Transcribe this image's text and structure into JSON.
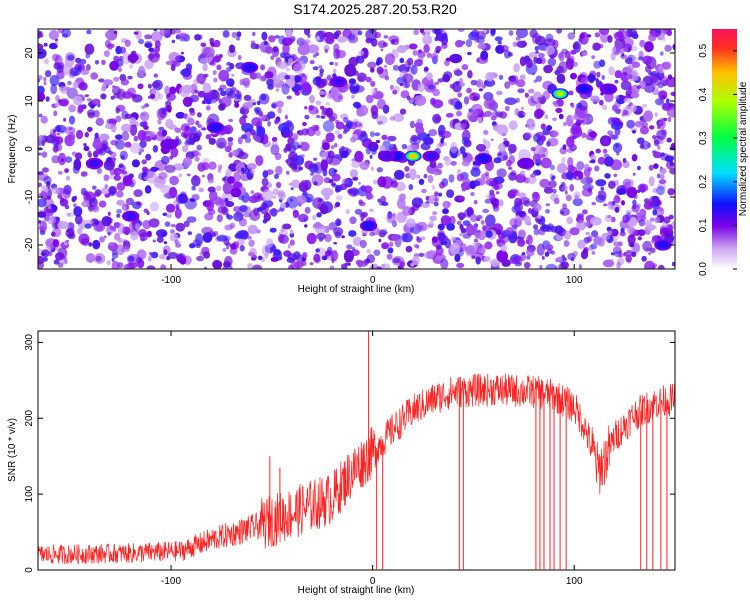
{
  "figure_title": "S174.2025.287.20.53.R20",
  "chart_data": [
    {
      "type": "heatmap",
      "xlabel": "Height of straight line (km)",
      "ylabel": "Frequency (Hz)",
      "xlim": [
        -166,
        150
      ],
      "ylim": [
        -25,
        25
      ],
      "xticks": [
        -100,
        0,
        100
      ],
      "yticks": [
        -20,
        -10,
        0,
        10,
        20
      ],
      "colorbar": {
        "label": "Normalized spectral amplitude",
        "range": [
          0,
          0.55
        ],
        "ticks": [
          0,
          0.1,
          0.2,
          0.3,
          0.4,
          0.5
        ],
        "tick_labels": [
          "0.0",
          "0.1",
          "0.2",
          "0.3",
          "0.4",
          "0.5"
        ]
      },
      "hotspots": [
        {
          "x": 20,
          "y": -1.5,
          "value": 0.45
        },
        {
          "x": 93,
          "y": 11.5,
          "value": 0.38
        },
        {
          "x": 12,
          "y": -1.5,
          "value": 0.15
        },
        {
          "x": 7,
          "y": -1.5,
          "value": 0.12
        },
        {
          "x": 29,
          "y": -1.5,
          "value": 0.13
        },
        {
          "x": 55,
          "y": -2,
          "value": 0.14
        },
        {
          "x": 105,
          "y": 12.5,
          "value": 0.15
        },
        {
          "x": 117,
          "y": 12.5,
          "value": 0.12
        },
        {
          "x": -61,
          "y": 17,
          "value": 0.14
        },
        {
          "x": -17,
          "y": 14,
          "value": 0.13
        },
        {
          "x": -78,
          "y": 4.5,
          "value": 0.14
        },
        {
          "x": -138,
          "y": -3,
          "value": 0.13
        },
        {
          "x": -120,
          "y": -14,
          "value": 0.13
        },
        {
          "x": -2,
          "y": -16,
          "value": 0.14
        },
        {
          "x": 144,
          "y": -20,
          "value": 0.14
        },
        {
          "x": -101,
          "y": 1,
          "value": 0.11
        },
        {
          "x": 76,
          "y": -3,
          "value": 0.11
        }
      ]
    },
    {
      "type": "line",
      "xlabel": "Height of straight line (km)",
      "ylabel": "SNR (10 * v/v)",
      "xlim": [
        -166,
        150
      ],
      "ylim": [
        0,
        315
      ],
      "xticks": [
        -100,
        0,
        100
      ],
      "yticks": [
        0,
        100,
        200,
        300
      ],
      "series": [
        {
          "color": "#ff2020",
          "profile_x": [
            -166,
            -120,
            -95,
            -80,
            -60,
            -40,
            -20,
            -10,
            -2,
            0,
            10,
            20,
            30,
            40,
            60,
            80,
            90,
            100,
            105,
            110,
            112,
            115,
            120,
            130,
            140,
            150
          ],
          "profile_y": [
            20,
            22,
            25,
            40,
            55,
            75,
            95,
            130,
            150,
            155,
            185,
            210,
            225,
            235,
            238,
            235,
            230,
            215,
            190,
            150,
            130,
            145,
            175,
            205,
            220,
            225
          ],
          "spikes": [
            {
              "x": -2,
              "value": 315
            },
            {
              "x": -51,
              "value": 150
            },
            {
              "x": -46,
              "value": 135
            }
          ],
          "dropouts": [
            2,
            5,
            43,
            45,
            81,
            83,
            85,
            88,
            90,
            93,
            96,
            133,
            136,
            139,
            143,
            146
          ]
        }
      ]
    }
  ]
}
